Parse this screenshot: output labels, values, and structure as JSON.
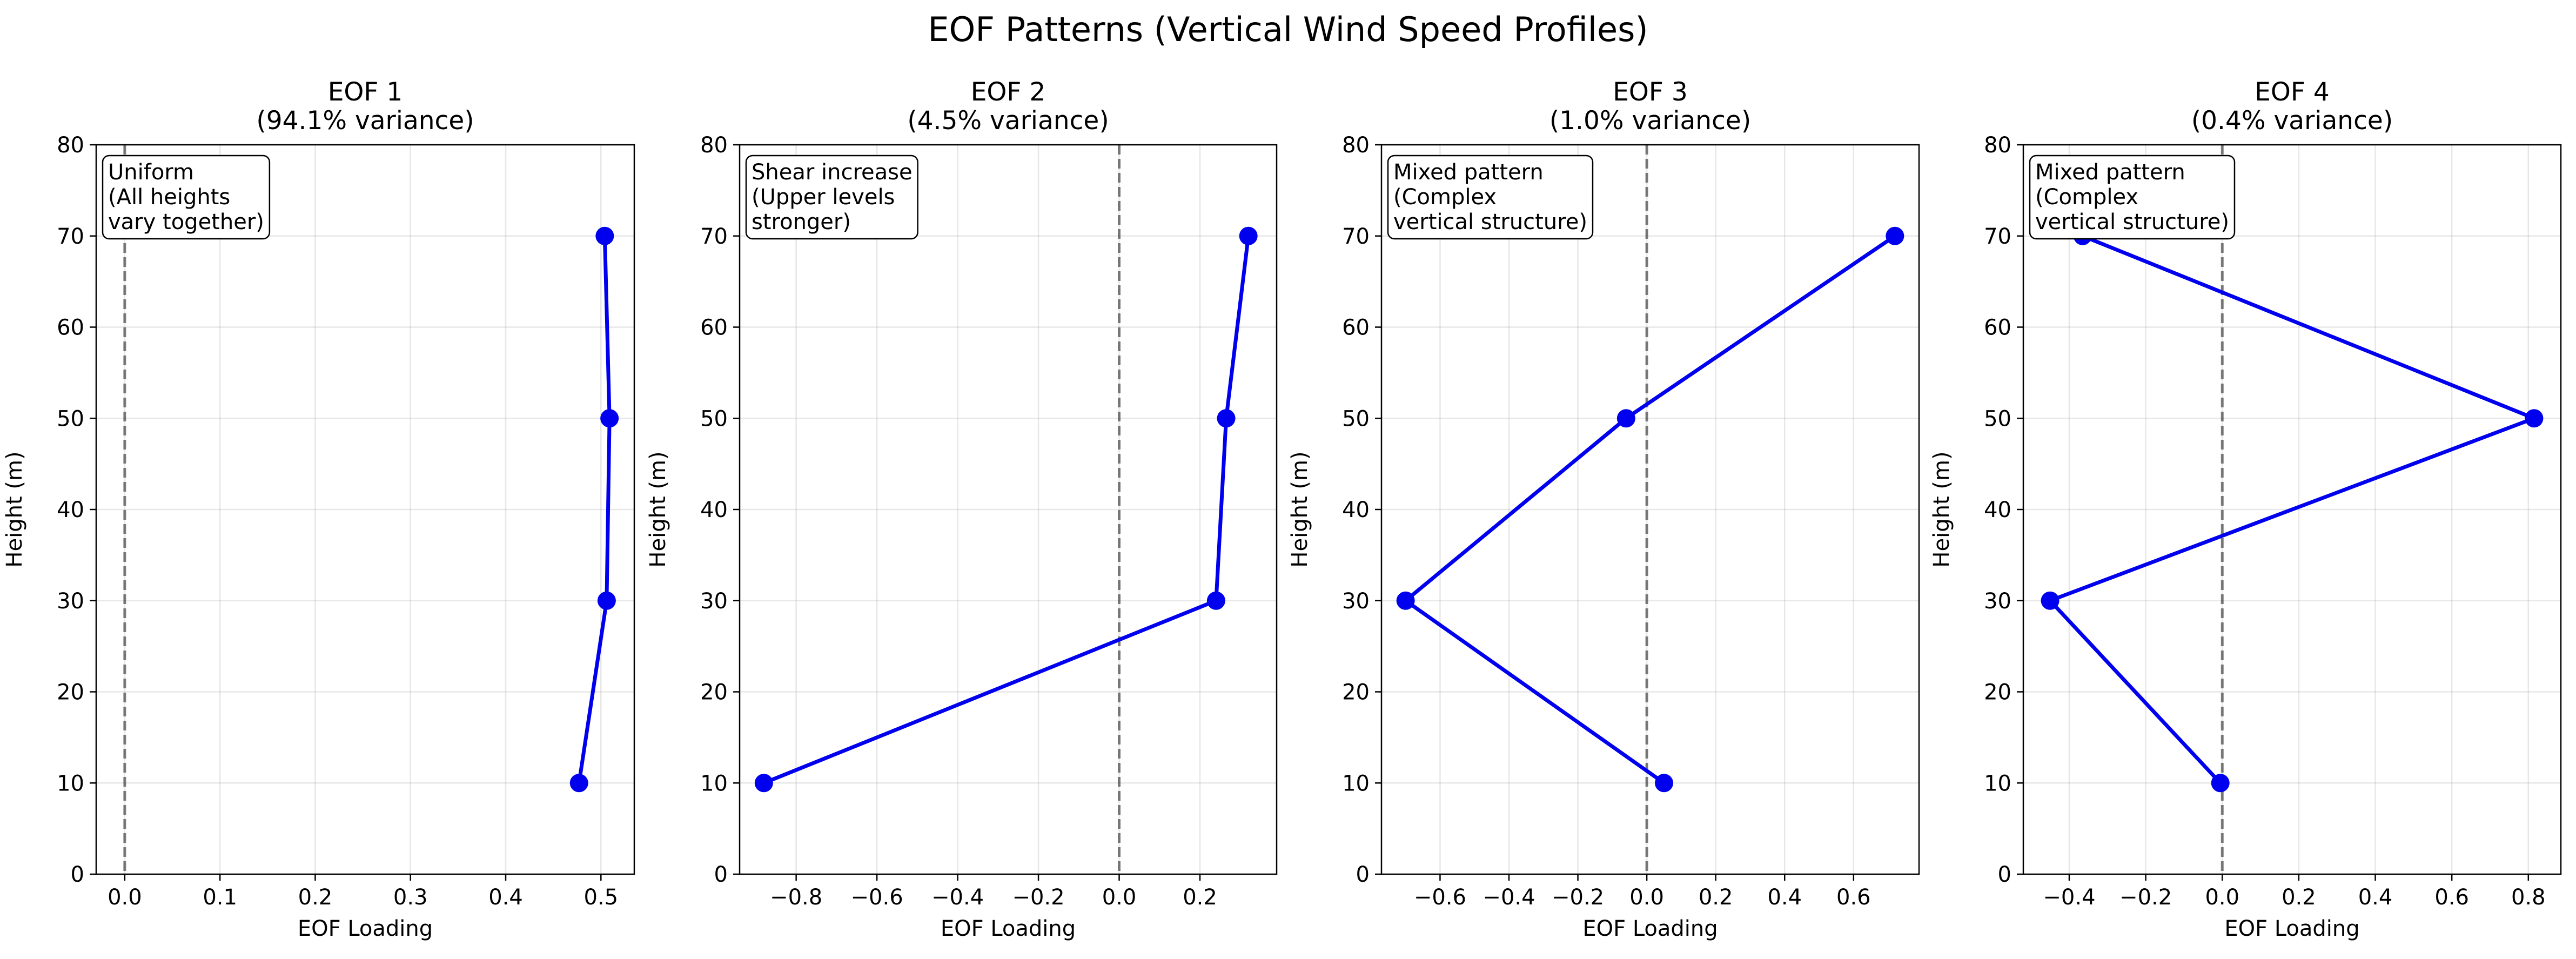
{
  "figure_title": "EOF Patterns (Vertical Wind Speed Profiles)",
  "chart_data": [
    {
      "type": "line",
      "title": "EOF 1\n(94.1% variance)",
      "xlabel": "EOF Loading",
      "ylabel": "Height (m)",
      "xlim": [
        -0.03,
        0.535
      ],
      "ylim": [
        0,
        80
      ],
      "xticks": [
        "0.0",
        "0.1",
        "0.2",
        "0.3",
        "0.4",
        "0.5"
      ],
      "xtick_values": [
        0.0,
        0.1,
        0.2,
        0.3,
        0.4,
        0.5
      ],
      "yticks": [
        "0",
        "10",
        "20",
        "30",
        "40",
        "50",
        "60",
        "70",
        "80"
      ],
      "ytick_values": [
        0,
        10,
        20,
        30,
        40,
        50,
        60,
        70,
        80
      ],
      "grid": true,
      "zero_line": true,
      "annotation": "Uniform\n(All heights\nvary together)",
      "series": [
        {
          "x": [
            0.477,
            0.506,
            0.509,
            0.504
          ],
          "y": [
            10,
            30,
            50,
            70
          ]
        }
      ]
    },
    {
      "type": "line",
      "title": "EOF 2\n(4.5% variance)",
      "xlabel": "EOF Loading",
      "ylabel": "Height (m)",
      "xlim": [
        -0.94,
        0.39
      ],
      "ylim": [
        0,
        80
      ],
      "xticks": [
        "−0.8",
        "−0.6",
        "−0.4",
        "−0.2",
        "0.0",
        "0.2"
      ],
      "xtick_values": [
        -0.8,
        -0.6,
        -0.4,
        -0.2,
        0.0,
        0.2
      ],
      "yticks": [
        "0",
        "10",
        "20",
        "30",
        "40",
        "50",
        "60",
        "70",
        "80"
      ],
      "ytick_values": [
        0,
        10,
        20,
        30,
        40,
        50,
        60,
        70,
        80
      ],
      "grid": true,
      "zero_line": true,
      "annotation": "Shear increase\n(Upper levels\nstronger)",
      "series": [
        {
          "x": [
            -0.88,
            0.24,
            0.265,
            0.32
          ],
          "y": [
            10,
            30,
            50,
            70
          ]
        }
      ]
    },
    {
      "type": "line",
      "title": "EOF 3\n(1.0% variance)",
      "xlabel": "EOF Loading",
      "ylabel": "Height (m)",
      "xlim": [
        -0.77,
        0.79
      ],
      "ylim": [
        0,
        80
      ],
      "xticks": [
        "−0.6",
        "−0.4",
        "−0.2",
        "0.0",
        "0.2",
        "0.4",
        "0.6"
      ],
      "xtick_values": [
        -0.6,
        -0.4,
        -0.2,
        0.0,
        0.2,
        0.4,
        0.6
      ],
      "yticks": [
        "0",
        "10",
        "20",
        "30",
        "40",
        "50",
        "60",
        "70",
        "80"
      ],
      "ytick_values": [
        0,
        10,
        20,
        30,
        40,
        50,
        60,
        70,
        80
      ],
      "grid": true,
      "zero_line": true,
      "annotation": "Mixed pattern\n(Complex\nvertical structure)",
      "series": [
        {
          "x": [
            0.05,
            -0.7,
            -0.06,
            0.72
          ],
          "y": [
            10,
            30,
            50,
            70
          ]
        }
      ]
    },
    {
      "type": "line",
      "title": "EOF 4\n(0.4% variance)",
      "xlabel": "EOF Loading",
      "ylabel": "Height (m)",
      "xlim": [
        -0.52,
        0.885
      ],
      "ylim": [
        0,
        80
      ],
      "xticks": [
        "−0.4",
        "−0.2",
        "0.0",
        "0.2",
        "0.4",
        "0.6",
        "0.8"
      ],
      "xtick_values": [
        -0.4,
        -0.2,
        0.0,
        0.2,
        0.4,
        0.6,
        0.8
      ],
      "yticks": [
        "0",
        "10",
        "20",
        "30",
        "40",
        "50",
        "60",
        "70",
        "80"
      ],
      "ytick_values": [
        0,
        10,
        20,
        30,
        40,
        50,
        60,
        70,
        80
      ],
      "grid": true,
      "zero_line": true,
      "annotation": "Mixed pattern\n(Complex\nvertical structure)",
      "series": [
        {
          "x": [
            -0.005,
            -0.45,
            0.815,
            -0.365
          ],
          "y": [
            10,
            30,
            50,
            70
          ]
        }
      ]
    }
  ]
}
